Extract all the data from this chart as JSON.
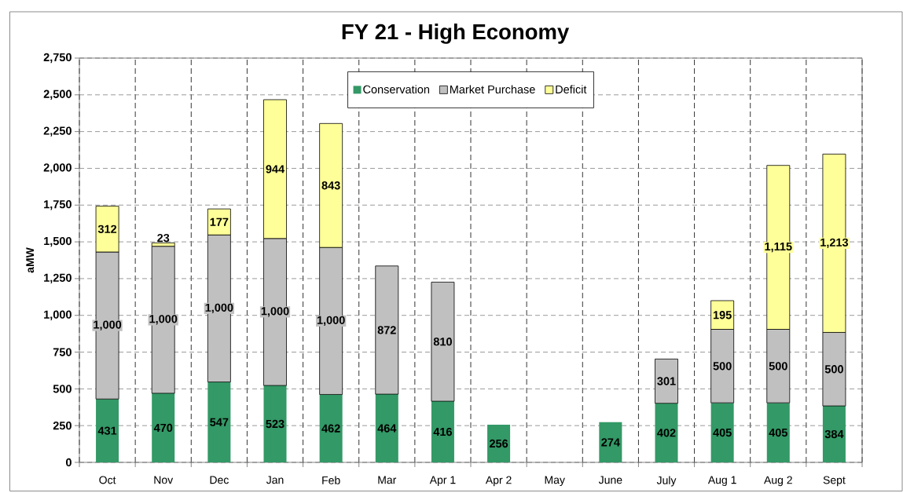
{
  "chart_data": {
    "type": "bar",
    "title": "FY 21 - High Economy",
    "ylabel": "aMW",
    "categories": [
      "Oct",
      "Nov",
      "Dec",
      "Jan",
      "Feb",
      "Mar",
      "Apr 1",
      "Apr 2",
      "May",
      "June",
      "July",
      "Aug 1",
      "Aug 2",
      "Sept"
    ],
    "stacked": true,
    "series": [
      {
        "name": "Conservation",
        "color": "#339966",
        "values": [
          431,
          470,
          547,
          523,
          462,
          464,
          416,
          256,
          null,
          274,
          402,
          405,
          405,
          384
        ],
        "value_labels": [
          "431",
          "470",
          "547",
          "523",
          "462",
          "464",
          "416",
          "256",
          null,
          "274",
          "402",
          "405",
          "405",
          "384"
        ]
      },
      {
        "name": "Market Purchase",
        "color": "#c0c0c0",
        "values": [
          1000,
          1000,
          1000,
          1000,
          1000,
          872,
          810,
          null,
          null,
          null,
          301,
          500,
          500,
          500
        ],
        "value_labels": [
          "1,000",
          "1,000",
          "1,000",
          "1,000",
          "1,000",
          "872",
          "810",
          null,
          null,
          null,
          "301",
          "500",
          "500",
          "500"
        ]
      },
      {
        "name": "Deficit",
        "color": "#ffff99",
        "values": [
          312,
          23,
          177,
          944,
          843,
          null,
          null,
          null,
          null,
          null,
          null,
          195,
          1115,
          1213
        ],
        "value_labels": [
          "312",
          "23",
          "177",
          "944",
          "843",
          null,
          null,
          null,
          null,
          null,
          null,
          "195",
          "1,115",
          "1,213"
        ]
      }
    ],
    "ylim": [
      0,
      2750
    ],
    "yticks": [
      0,
      250,
      500,
      750,
      {
        "value": 1000,
        "label": "1,000"
      },
      {
        "value": 1250,
        "label": "1,250"
      },
      {
        "value": 1500,
        "label": "1,500"
      },
      {
        "value": 1750,
        "label": "1,750"
      },
      {
        "value": 2000,
        "label": "2,000"
      },
      {
        "value": 2250,
        "label": "2,250"
      },
      {
        "value": 2500,
        "label": "2,500"
      },
      {
        "value": 2750,
        "label": "2,750"
      }
    ],
    "grid": true,
    "legend": "top"
  }
}
